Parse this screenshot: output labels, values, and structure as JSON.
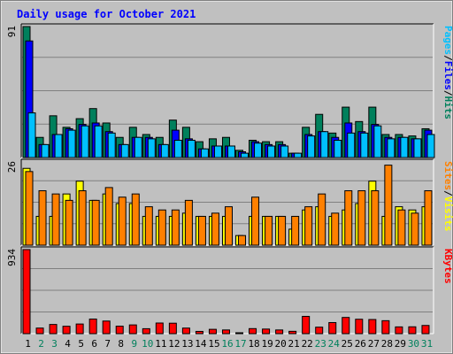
{
  "colors": {
    "page_bg": "#c0c0c0",
    "plot_bg": "#c0c0c0",
    "title_text": "#0000ff",
    "hits": "#00805c",
    "files": "#0000ff",
    "pages": "#00c0ff",
    "visits": "#ffff00",
    "sites": "#ff8000",
    "kbytes": "#ff0000",
    "weekend_label": "#00805c",
    "weekday_label": "#000000",
    "gridline": "#808080",
    "bar_outline": "#000000"
  },
  "chart_data": [
    {
      "type": "bar",
      "title": "Daily usage for October 2021",
      "panel": "top",
      "max_tick_label": "91",
      "ylim": [
        0,
        91
      ],
      "axis_label_parts": [
        {
          "text": "Pages",
          "color": "#00c0ff"
        },
        {
          "text": "/",
          "color": "#000000"
        },
        {
          "text": "Files",
          "color": "#0000ff"
        },
        {
          "text": "/",
          "color": "#000000"
        },
        {
          "text": "Hits",
          "color": "#00805c"
        }
      ],
      "categories": [
        "1",
        "2",
        "3",
        "4",
        "5",
        "6",
        "7",
        "8",
        "9",
        "10",
        "11",
        "12",
        "13",
        "14",
        "15",
        "16",
        "17",
        "18",
        "19",
        "20",
        "21",
        "22",
        "23",
        "24",
        "25",
        "26",
        "27",
        "28",
        "29",
        "30",
        "31"
      ],
      "series": [
        {
          "name": "Hits",
          "values": [
            91,
            14,
            29,
            21,
            27,
            34,
            24,
            14,
            21,
            16,
            14,
            26,
            21,
            11,
            13,
            14,
            5,
            12,
            11,
            11,
            3,
            21,
            30,
            17,
            35,
            25,
            35,
            16,
            16,
            15,
            20
          ]
        },
        {
          "name": "Files",
          "values": [
            81,
            9,
            16,
            20,
            23,
            24,
            18,
            9,
            14,
            14,
            9,
            19,
            13,
            6,
            8,
            8,
            4,
            11,
            9,
            9,
            3,
            16,
            18,
            14,
            24,
            18,
            23,
            14,
            14,
            13,
            19
          ]
        },
        {
          "name": "Pages",
          "values": [
            31,
            9,
            16,
            19,
            22,
            22,
            17,
            9,
            14,
            13,
            9,
            12,
            12,
            6,
            8,
            8,
            3,
            10,
            8,
            8,
            3,
            15,
            18,
            12,
            17,
            17,
            22,
            13,
            14,
            13,
            16
          ]
        }
      ]
    },
    {
      "type": "bar",
      "panel": "middle",
      "max_tick_label": "26",
      "ylim": [
        0,
        26
      ],
      "axis_label_parts": [
        {
          "text": "Sites",
          "color": "#ff8000"
        },
        {
          "text": "/",
          "color": "#000000"
        },
        {
          "text": "Visits",
          "color": "#ffff00"
        }
      ],
      "categories": [
        "1",
        "2",
        "3",
        "4",
        "5",
        "6",
        "7",
        "8",
        "9",
        "10",
        "11",
        "12",
        "13",
        "14",
        "15",
        "16",
        "17",
        "18",
        "19",
        "20",
        "21",
        "22",
        "23",
        "24",
        "25",
        "26",
        "27",
        "28",
        "29",
        "30",
        "31"
      ],
      "series": [
        {
          "name": "Visits",
          "values": [
            24,
            9,
            9,
            16,
            20,
            14,
            16,
            13,
            13,
            9,
            9,
            9,
            10,
            9,
            9,
            9,
            3,
            9,
            9,
            9,
            5,
            11,
            12,
            9,
            11,
            13,
            20,
            9,
            12,
            11,
            12
          ]
        },
        {
          "name": "Sites",
          "values": [
            23,
            17,
            16,
            14,
            17,
            14,
            18,
            15,
            16,
            12,
            11,
            11,
            14,
            9,
            10,
            12,
            3,
            15,
            9,
            9,
            9,
            12,
            16,
            10,
            17,
            17,
            17,
            25,
            11,
            10,
            17
          ]
        }
      ]
    },
    {
      "type": "bar",
      "panel": "bottom",
      "max_tick_label": "934",
      "ylim": [
        0,
        934
      ],
      "axis_label_parts": [
        {
          "text": "KBytes",
          "color": "#ff0000"
        }
      ],
      "categories": [
        "1",
        "2",
        "3",
        "4",
        "5",
        "6",
        "7",
        "8",
        "9",
        "10",
        "11",
        "12",
        "13",
        "14",
        "15",
        "16",
        "17",
        "18",
        "19",
        "20",
        "21",
        "22",
        "23",
        "24",
        "25",
        "26",
        "27",
        "28",
        "29",
        "30",
        "31"
      ],
      "series": [
        {
          "name": "KBytes",
          "values": [
            934,
            62,
            102,
            82,
            107,
            162,
            140,
            83,
            97,
            55,
            118,
            116,
            62,
            25,
            48,
            41,
            10,
            56,
            51,
            41,
            26,
            192,
            72,
            123,
            180,
            160,
            157,
            144,
            75,
            76,
            91
          ]
        }
      ]
    }
  ]
}
